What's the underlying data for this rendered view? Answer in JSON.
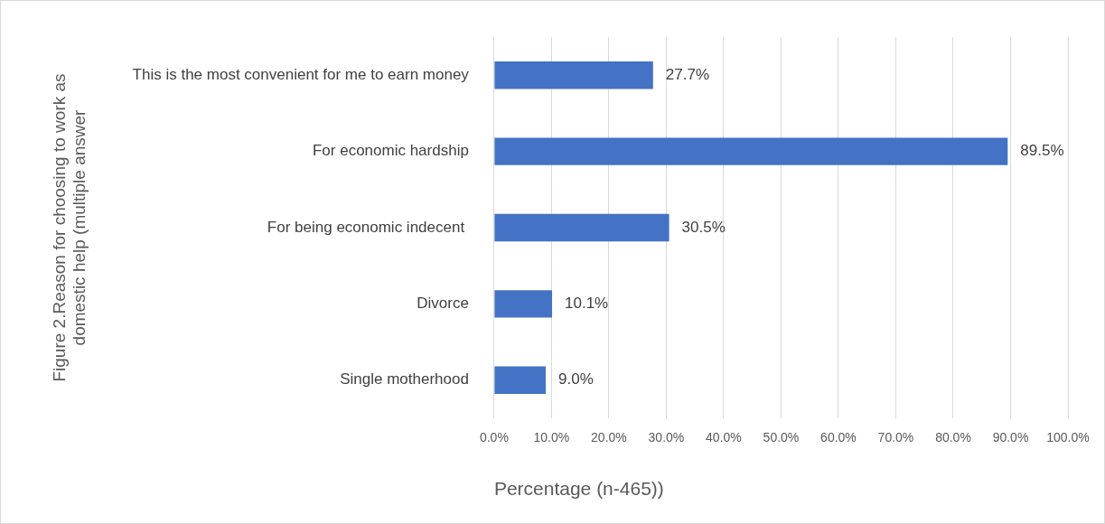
{
  "chart_data": {
    "type": "bar",
    "orientation": "horizontal",
    "ylabel": "Figure 2.Reason for choosing to work as domestic help (multiple answer",
    "xlabel": "Percentage (n-465))",
    "categories": [
      "This is the most convenient for me to earn money",
      "For economic hardship",
      "For being economic indecent ",
      "Divorce",
      "Single motherhood"
    ],
    "series": [
      {
        "color": "#4472c4",
        "values": [
          27.7,
          89.5,
          30.5,
          10.1,
          9.0
        ],
        "value_labels": [
          "27.7%",
          "89.5%",
          "30.5%",
          "10.1%",
          "9.0%"
        ]
      }
    ],
    "xlim": [
      0,
      100
    ],
    "xticks": [
      {
        "value": 0,
        "label": "0.0%"
      },
      {
        "value": 10,
        "label": "10.0%"
      },
      {
        "value": 20,
        "label": "20.0%"
      },
      {
        "value": 30,
        "label": "30.0%"
      },
      {
        "value": 40,
        "label": "40.0%"
      },
      {
        "value": 50,
        "label": "50.0%"
      },
      {
        "value": 60,
        "label": "60.0%"
      },
      {
        "value": 70,
        "label": "70.0%"
      },
      {
        "value": 80,
        "label": "80.0%"
      },
      {
        "value": 90,
        "label": "90.0%"
      },
      {
        "value": 100,
        "label": "100.0%"
      }
    ],
    "grid": "x",
    "legend": false
  }
}
